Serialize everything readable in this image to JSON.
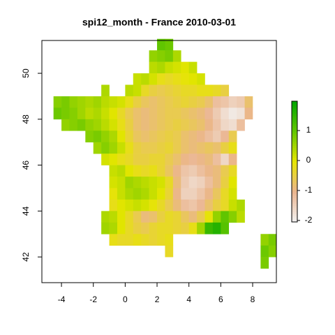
{
  "chart_data": {
    "type": "raster",
    "title": "spi12_month - France 2010-03-01",
    "xlim": [
      -5.23,
      9.49
    ],
    "ylim": [
      40.88,
      51.43
    ],
    "xticks": [
      -4,
      -2,
      0,
      2,
      4,
      6,
      8
    ],
    "yticks": [
      42,
      44,
      46,
      48,
      50
    ],
    "zlim": [
      -2.05,
      1.98
    ],
    "zticks": [
      -2,
      -1,
      0,
      1
    ],
    "colors": [
      "#F2F2F2",
      "#EBB58F",
      "#E6E600",
      "#63C600",
      "#00A600"
    ],
    "x": [
      -4.75,
      -4.25,
      -3.75,
      -3.25,
      -2.75,
      -2.25,
      -1.75,
      -1.25,
      -0.75,
      -0.25,
      0.25,
      0.75,
      1.25,
      1.75,
      2.25,
      2.75,
      3.25,
      3.75,
      4.25,
      4.75,
      5.25,
      5.75,
      6.25,
      6.75,
      7.25,
      7.75,
      8.25,
      8.75,
      9.25
    ],
    "y": [
      51.25,
      50.75,
      50.25,
      49.75,
      49.25,
      48.75,
      48.25,
      47.75,
      47.25,
      46.75,
      46.25,
      45.75,
      45.25,
      44.75,
      44.25,
      43.75,
      43.25,
      42.75,
      42.25,
      41.75
    ],
    "values": [
      [
        null,
        null,
        null,
        null,
        null,
        null,
        null,
        null,
        null,
        null,
        null,
        null,
        null,
        null,
        1,
        0.9,
        null,
        null,
        null,
        null,
        null,
        null,
        null,
        null,
        null,
        null,
        null,
        null,
        null
      ],
      [
        null,
        null,
        null,
        null,
        null,
        null,
        null,
        null,
        null,
        null,
        null,
        null,
        null,
        0.6,
        0.7,
        0.8,
        0.4,
        null,
        null,
        null,
        null,
        null,
        null,
        null,
        null,
        null,
        null,
        null,
        null
      ],
      [
        null,
        null,
        null,
        null,
        null,
        null,
        null,
        null,
        null,
        null,
        null,
        null,
        null,
        0.3,
        0.4,
        0.2,
        0.1,
        0,
        0.2,
        null,
        null,
        null,
        null,
        null,
        null,
        null,
        null,
        null,
        null
      ],
      [
        null,
        null,
        null,
        null,
        null,
        null,
        null,
        null,
        null,
        null,
        null,
        0.2,
        0.3,
        0.1,
        -0.2,
        -0.3,
        -0.2,
        -0.1,
        0,
        0.1,
        null,
        null,
        null,
        null,
        null,
        null,
        null,
        null,
        null
      ],
      [
        null,
        null,
        null,
        null,
        null,
        null,
        null,
        0.4,
        null,
        null,
        0.3,
        0.2,
        -0.3,
        -0.5,
        -0.6,
        -0.5,
        -0.4,
        -0.3,
        -0.3,
        -0.2,
        -0.2,
        -0.3,
        -0.5,
        null,
        null,
        null,
        null,
        null,
        null
      ],
      [
        null,
        0.7,
        0.8,
        0.6,
        0.5,
        0.4,
        0.5,
        0.3,
        0.2,
        0.1,
        -0.2,
        -0.5,
        -0.7,
        -0.8,
        -0.7,
        -0.6,
        -0.5,
        -0.4,
        -0.5,
        -0.6,
        -0.8,
        -1.2,
        -1.3,
        -1.5,
        -1.4,
        -0.8,
        null,
        null,
        null
      ],
      [
        null,
        0.9,
        0.8,
        0.7,
        0.5,
        0.3,
        0.4,
        0.2,
        0,
        -0.3,
        -0.6,
        -0.8,
        -0.9,
        -0.8,
        -0.7,
        -0.6,
        -0.6,
        -0.7,
        -0.8,
        -0.9,
        -1.1,
        -1.4,
        -1.7,
        -1.9,
        -1.8,
        -1,
        null,
        null,
        null
      ],
      [
        null,
        null,
        0.6,
        0.7,
        0.8,
        0.6,
        0.5,
        0.3,
        0.1,
        -0.2,
        -0.5,
        -0.8,
        -0.9,
        -0.8,
        -0.7,
        -0.6,
        -0.5,
        -0.6,
        -0.7,
        -0.8,
        -1,
        -1.3,
        -1.6,
        -1.7,
        -1.2,
        null,
        null,
        null,
        null
      ],
      [
        null,
        null,
        null,
        null,
        null,
        0.7,
        0.8,
        0.6,
        0.4,
        0,
        -0.4,
        -0.7,
        -0.8,
        -0.7,
        -0.6,
        -0.5,
        -0.6,
        -0.8,
        -0.9,
        -1,
        -1.2,
        -1.4,
        -1.1,
        -0.6,
        null,
        null,
        null,
        null,
        null
      ],
      [
        null,
        null,
        null,
        null,
        null,
        null,
        0.5,
        0.7,
        0.5,
        0.2,
        -0.2,
        -0.5,
        -0.6,
        -0.6,
        -0.5,
        -0.4,
        -0.6,
        -0.8,
        -0.9,
        -0.8,
        -0.7,
        -0.8,
        -0.5,
        -0.2,
        null,
        null,
        null,
        null,
        null
      ],
      [
        null,
        null,
        null,
        null,
        null,
        null,
        null,
        0.1,
        0,
        -0.2,
        -0.3,
        -0.5,
        -0.5,
        -0.4,
        -0.4,
        -0.6,
        -0.8,
        -1,
        -1.1,
        -1,
        -0.9,
        -1.2,
        -1.6,
        -1,
        null,
        null,
        null,
        null,
        null
      ],
      [
        null,
        null,
        null,
        null,
        null,
        null,
        null,
        null,
        0.2,
        0.3,
        0,
        -0.2,
        -0.3,
        -0.2,
        -0.4,
        -0.7,
        -1,
        -1.3,
        -1.4,
        -1.2,
        -1,
        -0.9,
        -0.6,
        -0.3,
        null,
        null,
        null,
        null,
        null
      ],
      [
        null,
        null,
        null,
        null,
        null,
        null,
        null,
        null,
        0.1,
        0.2,
        0.5,
        0.4,
        0.3,
        0.2,
        0.1,
        -0.3,
        -0.9,
        -1.4,
        -1.6,
        -1.5,
        -1.2,
        -0.9,
        -0.5,
        0,
        null,
        null,
        null,
        null,
        null
      ],
      [
        null,
        null,
        null,
        null,
        null,
        null,
        null,
        null,
        -0.1,
        0.2,
        0.4,
        0.5,
        0.4,
        0.2,
        0,
        -0.4,
        -1,
        -1.5,
        -1.5,
        -1.3,
        -1,
        -0.7,
        -0.3,
        0.1,
        null,
        null,
        null,
        null,
        null
      ],
      [
        null,
        null,
        null,
        null,
        null,
        null,
        null,
        null,
        -0.2,
        0,
        0.1,
        0.2,
        0.1,
        -0.1,
        -0.3,
        -0.6,
        -0.9,
        -1.2,
        -1.3,
        -1.1,
        -0.8,
        -0.5,
        -0.3,
        0.2,
        0.4,
        null,
        null,
        null,
        null
      ],
      [
        null,
        null,
        null,
        null,
        null,
        null,
        null,
        0.4,
        0.3,
        0,
        -0.3,
        -0.6,
        -0.9,
        -0.8,
        -0.5,
        -0.3,
        -0.4,
        -0.7,
        -0.9,
        -0.6,
        -0.1,
        0.6,
        1,
        0.7,
        0.3,
        null,
        null,
        null,
        null
      ],
      [
        null,
        null,
        null,
        null,
        null,
        null,
        null,
        0.5,
        0.4,
        0,
        -0.3,
        -0.5,
        -0.6,
        -0.4,
        -0.3,
        -0.3,
        -0.4,
        -0.5,
        -0.2,
        0.5,
        1.4,
        1.6,
        1.1,
        null,
        null,
        null,
        null,
        null,
        null
      ],
      [
        null,
        null,
        null,
        null,
        null,
        null,
        null,
        null,
        -0.2,
        -0.3,
        -0.3,
        -0.2,
        -0.3,
        -0.4,
        -0.3,
        -0.2,
        null,
        null,
        null,
        null,
        null,
        null,
        null,
        null,
        null,
        null,
        null,
        0.6,
        0.8
      ],
      [
        null,
        null,
        null,
        null,
        null,
        null,
        null,
        null,
        null,
        null,
        null,
        null,
        null,
        null,
        null,
        -0.3,
        null,
        null,
        null,
        null,
        null,
        null,
        null,
        null,
        null,
        null,
        null,
        0.9,
        0.7
      ],
      [
        null,
        null,
        null,
        null,
        null,
        null,
        null,
        null,
        null,
        null,
        null,
        null,
        null,
        null,
        null,
        null,
        null,
        null,
        null,
        null,
        null,
        null,
        null,
        null,
        null,
        null,
        null,
        0.8,
        null
      ]
    ]
  }
}
